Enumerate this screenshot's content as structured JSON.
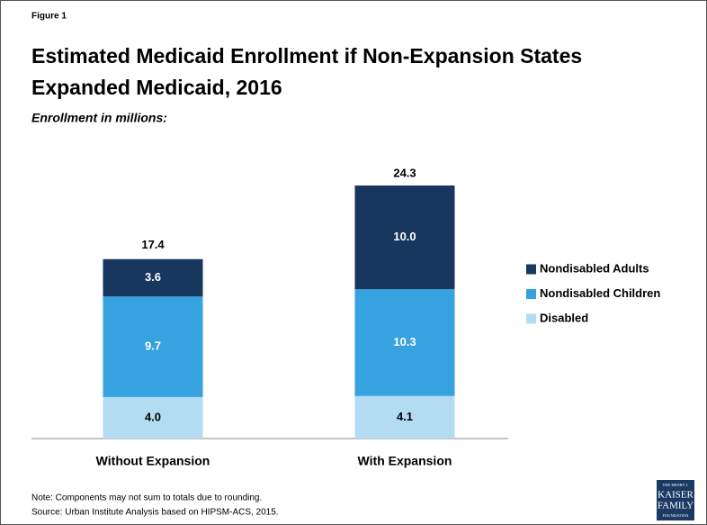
{
  "chart_data": {
    "type": "stacked_bar",
    "figure_label": "Figure 1",
    "title": [
      "Estimated Medicaid Enrollment if Non-Expansion States",
      "Expanded Medicaid, 2016"
    ],
    "subtitle": "Enrollment in millions:",
    "categories": [
      "Without Expansion",
      "With Expansion"
    ],
    "series": [
      {
        "name": "Disabled",
        "color": "#b3dcf2",
        "values": [
          4.0,
          4.1
        ],
        "value_labels": [
          "4.0",
          "4.1"
        ]
      },
      {
        "name": "Nondisabled Children",
        "color": "#36a2df",
        "values": [
          9.7,
          10.3
        ]
      },
      {
        "name": "Nondisabled Adults",
        "color": "#17375e",
        "values": [
          3.6,
          10.0
        ],
        "value_labels": [
          "3.6",
          "10.0"
        ]
      }
    ],
    "totals": [
      17.4,
      24.3
    ],
    "legend": "right",
    "notes": [
      "Note: Components may not sum to totals due to rounding.",
      "Source: Urban Institute Analysis based on HIPSM-ACS, 2015."
    ],
    "logo": [
      "THE HENRY J.",
      "KAISER",
      "FAMILY",
      "FOUNDATION"
    ]
  }
}
